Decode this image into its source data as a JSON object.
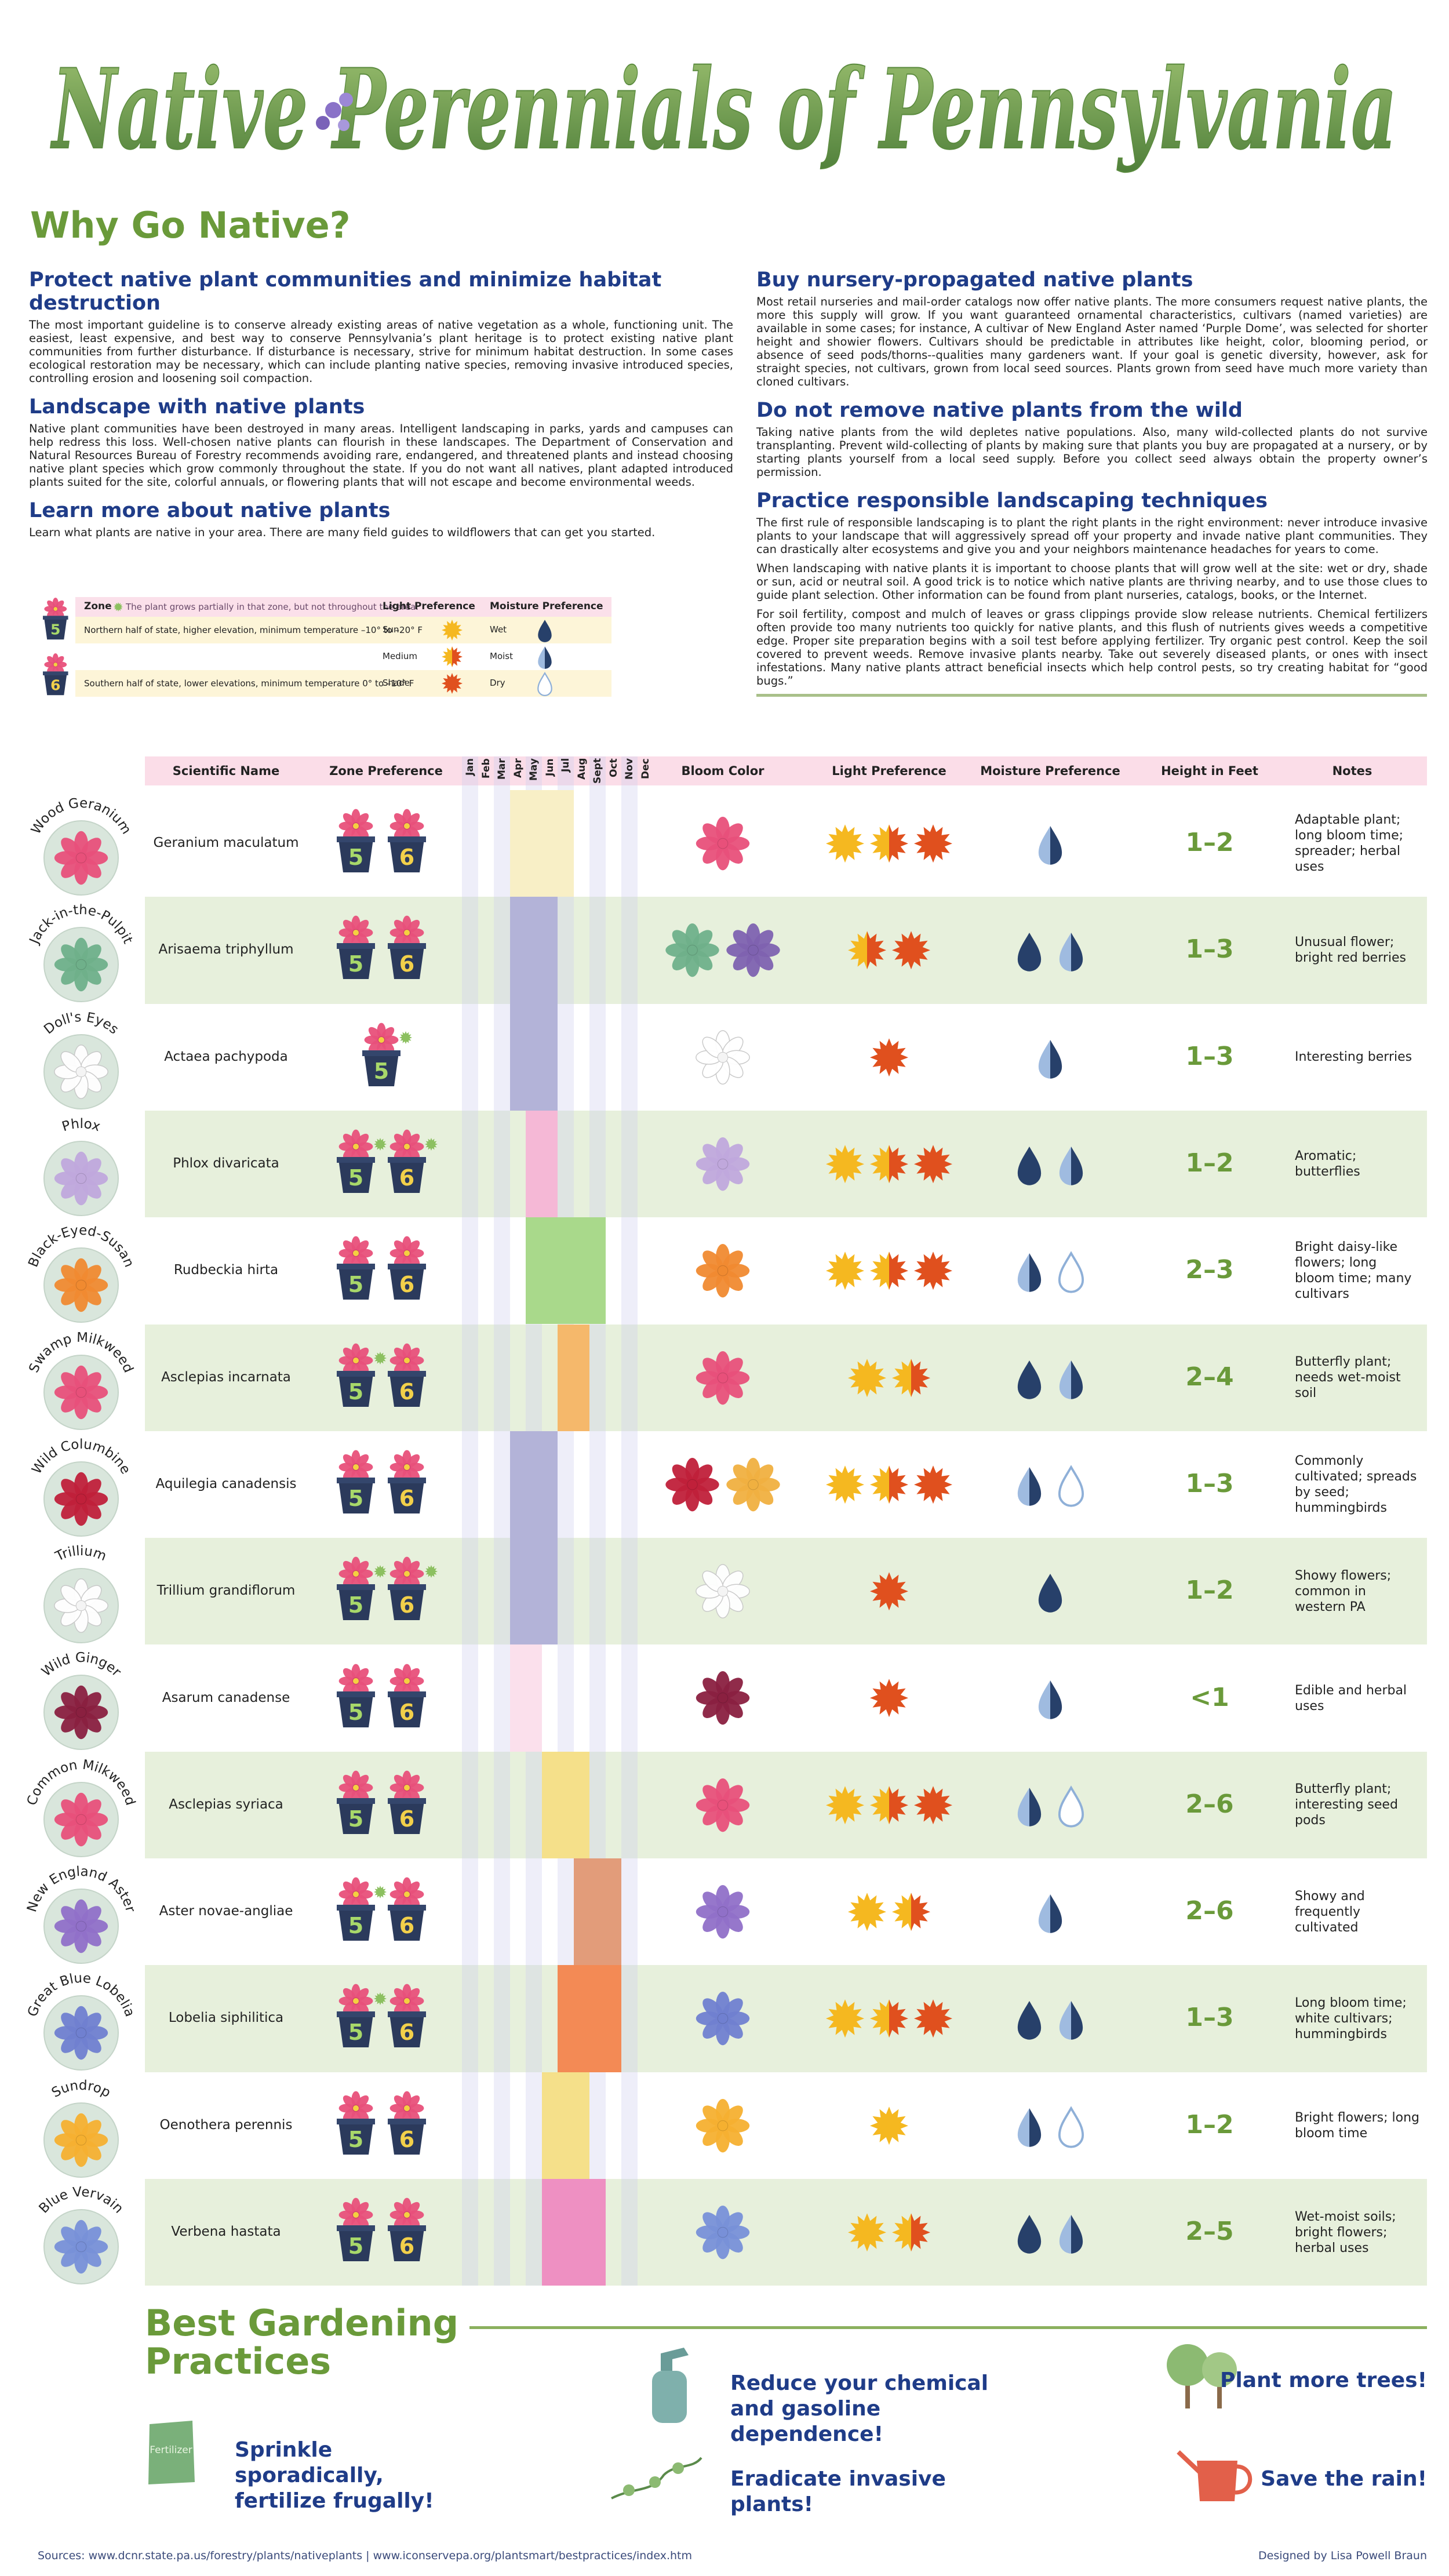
{
  "header": {
    "title": "Native Perennials of Pennsylvania"
  },
  "intro": {
    "title": "Why Go Native?",
    "left": [
      {
        "heading": "Protect native plant communities and minimize habitat destruction",
        "paragraphs": [
          "The most important guideline is to conserve already existing areas of native vegetation as a whole, functioning unit. The easiest, least expensive, and best way to conserve Pennsylvania’s plant heritage is to protect existing native plant communities from further disturbance. If disturbance is necessary, strive for minimum habitat destruction. In some cases ecological restoration may be necessary, which can include planting native species, removing invasive introduced species, controlling erosion and loosening soil compaction."
        ]
      },
      {
        "heading": "Landscape with native plants",
        "paragraphs": [
          "Native plant communities have been destroyed in many areas. Intelligent landscaping in parks, yards and campuses can help redress this loss. Well-chosen native plants can flourish in these landscapes. The Department of Conservation and Natural Resources Bureau of Forestry recommends avoiding rare, endangered, and threatened plants and instead choosing native plant species which grow commonly throughout the state. If you do not want all natives, plant adapted introduced plants suited for the site, colorful annuals, or flowering plants that will not escape and become environmental weeds."
        ]
      },
      {
        "heading": "Learn more about native plants",
        "paragraphs": [
          "Learn what plants are native in your area. There are many field guides to wildflowers that can get you started."
        ]
      }
    ],
    "right": [
      {
        "heading": "Buy nursery-propagated native plants",
        "paragraphs": [
          "Most retail nurseries and mail-order catalogs now offer native plants. The more consumers request native plants, the more this supply will grow. If you want guaranteed ornamental characteristics, cultivars (named varieties) are available in some cases; for instance, A cultivar of New England Aster named ‘Purple Dome’, was selected for shorter height and showier flowers. Cultivars should be predictable in attributes like height, color, blooming period, or absence of seed pods/thorns--qualities many gardeners want. If your goal is genetic diversity, however, ask for straight species, not cultivars, grown from local seed sources. Plants grown from seed have much more variety than cloned cultivars."
        ]
      },
      {
        "heading": "Do not remove native plants from the wild",
        "paragraphs": [
          "Taking native plants from the wild depletes native populations. Also, many wild-collected plants do not survive transplanting. Prevent wild-collecting of plants by making sure that plants you buy are propagated at a nursery, or by starting plants yourself from a local seed supply. Before you collect seed always obtain the property owner’s permission."
        ]
      },
      {
        "heading": "Practice responsible landscaping techniques",
        "paragraphs": [
          "The first rule of responsible landscaping is to plant the right plants in the right environment: never introduce invasive plants to your landscape that will aggressively spread off your property and invade native plant communities. They can drastically alter ecosystems and give you and your neighbors maintenance headaches for years to come.",
          "When landscaping with native plants it is important to choose plants that will grow well at the site: wet or dry, shade or sun, acid or neutral soil. A good trick is to notice which native plants are thriving nearby, and to use those clues to guide plant selection. Other information can be found from plant nurseries, catalogs, books, or the Internet.",
          "For soil fertility, compost and mulch of leaves or grass clippings provide slow release nutrients. Chemical fertilizers often provide too many nutrients too quickly for native plants, and this flush of nutrients gives weeds a competitive edge. Proper site preparation begins with a soil test before applying fertilizer. Try organic pest control. Keep the soil covered to prevent weeds. Remove invasive plants nearby. Take out severely diseased plants, or ones with insect infestations. Many native plants attract beneficial insects which help control pests, so try creating habitat for “good bugs.”"
        ]
      }
    ]
  },
  "legend": {
    "zone_heading": "Zone",
    "partial_note": "The plant grows partially in that zone, but not throughout the area.",
    "light_heading": "Light Preference",
    "moisture_heading": "Moisture Preference",
    "zones": [
      {
        "label": "5",
        "color": "#a8d86a",
        "description": "Northern half of state, higher elevation, minimum temperature –10° to –20° F"
      },
      {
        "label": "6",
        "color": "#f2d04a",
        "description": "Southern half of state, lower elevations, minimum temperature 0° to –10° F"
      }
    ],
    "light": [
      "Sun",
      "Medium",
      "Shade"
    ],
    "moisture": [
      "Wet",
      "Moist",
      "Dry"
    ]
  },
  "table": {
    "headers": {
      "scientific_name": "Scientific Name",
      "zone": "Zone Preference",
      "bloom_color": "Bloom Color",
      "light": "Light Preference",
      "moisture": "Moisture Preference",
      "height": "Height in Feet",
      "notes": "Notes"
    },
    "months": [
      "Jan",
      "Feb",
      "Mar",
      "Apr",
      "May",
      "Jun",
      "Jul",
      "Aug",
      "Sept",
      "Oct",
      "Nov",
      "Dec"
    ],
    "rows": [
      {
        "common_name": "Wood Geranium",
        "scientific_name": "Geranium maculatum",
        "zones": [
          {
            "label": "5",
            "partial": false
          },
          {
            "label": "6",
            "partial": false
          }
        ],
        "bloom_months": [
          3,
          6
        ],
        "bar_color": "#f8efc6",
        "bloom_colors": [
          "#e8507a"
        ],
        "light": [
          0,
          1,
          2
        ],
        "moisture": [
          1
        ],
        "height": "1–2",
        "notes": "Adaptable plant; long bloom time; spreader; herbal uses"
      },
      {
        "common_name": "Jack-in-the-Pulpit",
        "scientific_name": "Arisaema triphyllum",
        "zones": [
          {
            "label": "5",
            "partial": false
          },
          {
            "label": "6",
            "partial": false
          }
        ],
        "bloom_months": [
          3,
          5
        ],
        "bar_color": "#b3b3d8",
        "bloom_colors": [
          "#6fb08a",
          "#7e62b0"
        ],
        "light": [
          1,
          2
        ],
        "moisture": [
          0,
          1
        ],
        "height": "1–3",
        "notes": "Unusual flower; bright red berries"
      },
      {
        "common_name": "Doll's Eyes",
        "scientific_name": "Actaea pachypoda",
        "zones": [
          {
            "label": "5",
            "partial": true
          }
        ],
        "bloom_months": [
          3,
          5
        ],
        "bar_color": "#b3b3d8",
        "bloom_colors": [
          "#ffffff"
        ],
        "light": [
          2
        ],
        "moisture": [
          1
        ],
        "height": "1–3",
        "notes": "Interesting berries"
      },
      {
        "common_name": "Phlox",
        "scientific_name": "Phlox divaricata",
        "zones": [
          {
            "label": "5",
            "partial": true
          },
          {
            "label": "6",
            "partial": true
          }
        ],
        "bloom_months": [
          4,
          5
        ],
        "bar_color": "#f5b8d6",
        "bloom_colors": [
          "#c0a8dc"
        ],
        "light": [
          0,
          1,
          2
        ],
        "moisture": [
          0,
          1
        ],
        "height": "1–2",
        "notes": "Aromatic; butterflies"
      },
      {
        "common_name": "Black-Eyed-Susan",
        "scientific_name": "Rudbeckia hirta",
        "zones": [
          {
            "label": "5",
            "partial": false
          },
          {
            "label": "6",
            "partial": false
          }
        ],
        "bloom_months": [
          4,
          8
        ],
        "bar_color": "#a9d98b",
        "bloom_colors": [
          "#f08a30"
        ],
        "light": [
          0,
          1,
          2
        ],
        "moisture": [
          1,
          2
        ],
        "height": "2–3",
        "notes": "Bright daisy-like flowers; long bloom time; many cultivars"
      },
      {
        "common_name": "Swamp Milkweed",
        "scientific_name": "Asclepias incarnata",
        "zones": [
          {
            "label": "5",
            "partial": true
          },
          {
            "label": "6",
            "partial": false
          }
        ],
        "bloom_months": [
          6,
          7
        ],
        "bar_color": "#f5b86b",
        "bloom_colors": [
          "#e8507a"
        ],
        "light": [
          0,
          1
        ],
        "moisture": [
          0,
          1
        ],
        "height": "2–4",
        "notes": "Butterfly plant; needs wet-moist soil"
      },
      {
        "common_name": "Wild Columbine",
        "scientific_name": "Aquilegia canadensis",
        "zones": [
          {
            "label": "5",
            "partial": false
          },
          {
            "label": "6",
            "partial": false
          }
        ],
        "bloom_months": [
          3,
          5
        ],
        "bar_color": "#b3b3d8",
        "bloom_colors": [
          "#c0203a",
          "#f0b040"
        ],
        "light": [
          0,
          1,
          2
        ],
        "moisture": [
          1,
          2
        ],
        "height": "1–3",
        "notes": "Commonly cultivated; spreads by seed; hummingbirds"
      },
      {
        "common_name": "Trillium",
        "scientific_name": "Trillium grandiflorum",
        "zones": [
          {
            "label": "5",
            "partial": true
          },
          {
            "label": "6",
            "partial": true
          }
        ],
        "bloom_months": [
          3,
          5
        ],
        "bar_color": "#b3b3d8",
        "bloom_colors": [
          "#ffffff"
        ],
        "light": [
          2
        ],
        "moisture": [
          0
        ],
        "height": "1–2",
        "notes": "Showy flowers; common in western PA"
      },
      {
        "common_name": "Wild Ginger",
        "scientific_name": "Asarum canadense",
        "zones": [
          {
            "label": "5",
            "partial": false
          },
          {
            "label": "6",
            "partial": false
          }
        ],
        "bloom_months": [
          3,
          4
        ],
        "bar_color": "#fbe0ec",
        "bloom_colors": [
          "#8a2040"
        ],
        "light": [
          2
        ],
        "moisture": [
          1
        ],
        "height": "<1",
        "notes": "Edible and herbal uses"
      },
      {
        "common_name": "Common Milkweed",
        "scientific_name": "Asclepias syriaca",
        "zones": [
          {
            "label": "5",
            "partial": false
          },
          {
            "label": "6",
            "partial": false
          }
        ],
        "bloom_months": [
          5,
          7
        ],
        "bar_color": "#f5e08a",
        "bloom_colors": [
          "#e8507a"
        ],
        "light": [
          0,
          1,
          2
        ],
        "moisture": [
          1,
          2
        ],
        "height": "2–6",
        "notes": "Butterfly plant; interesting seed pods"
      },
      {
        "common_name": "New England Aster",
        "scientific_name": "Aster novae-angliae",
        "zones": [
          {
            "label": "5",
            "partial": true
          },
          {
            "label": "6",
            "partial": false
          }
        ],
        "bloom_months": [
          7,
          9
        ],
        "bar_color": "#e29c7a",
        "bloom_colors": [
          "#9070c8"
        ],
        "light": [
          0,
          1
        ],
        "moisture": [
          1
        ],
        "height": "2–6",
        "notes": "Showy and frequently cultivated"
      },
      {
        "common_name": "Great Blue Lobelia",
        "scientific_name": "Lobelia siphilitica",
        "zones": [
          {
            "label": "5",
            "partial": true
          },
          {
            "label": "6",
            "partial": false
          }
        ],
        "bloom_months": [
          6,
          9
        ],
        "bar_color": "#f38a55",
        "bloom_colors": [
          "#7080d0"
        ],
        "light": [
          0,
          1,
          2
        ],
        "moisture": [
          0,
          1
        ],
        "height": "1–3",
        "notes": "Long bloom time; white cultivars; hummingbirds"
      },
      {
        "common_name": "Sundrop",
        "scientific_name": "Oenothera perennis",
        "zones": [
          {
            "label": "5",
            "partial": false
          },
          {
            "label": "6",
            "partial": false
          }
        ],
        "bloom_months": [
          5,
          7
        ],
        "bar_color": "#f5e08a",
        "bloom_colors": [
          "#f5b030"
        ],
        "light": [
          0
        ],
        "moisture": [
          1,
          2
        ],
        "height": "1–2",
        "notes": "Bright flowers; long bloom time"
      },
      {
        "common_name": "Blue Vervain",
        "scientific_name": "Verbena hastata",
        "zones": [
          {
            "label": "5",
            "partial": false
          },
          {
            "label": "6",
            "partial": false
          }
        ],
        "bloom_months": [
          5,
          8
        ],
        "bar_color": "#ee90c2",
        "bloom_colors": [
          "#7890d8"
        ],
        "light": [
          0,
          1
        ],
        "moisture": [
          0,
          1
        ],
        "height": "2–5",
        "notes": "Wet-moist soils; bright flowers; herbal uses"
      }
    ]
  },
  "practices": {
    "title": "Best Gardening Practices",
    "fertilizer_bag_label": "Fertilizer",
    "items": [
      "Sprinkle sporadically, fertilize frugally!",
      "Reduce your chemical and gasoline dependence!",
      "Eradicate invasive plants!",
      "Plant more trees!",
      "Save the rain!"
    ]
  },
  "footer": {
    "sources": "Sources: www.dcnr.state.pa.us/forestry/plants/nativeplants | www.iconservepa.org/plantsmart/bestpractices/index.htm",
    "credit": "Designed by Lisa Powell Braun"
  }
}
